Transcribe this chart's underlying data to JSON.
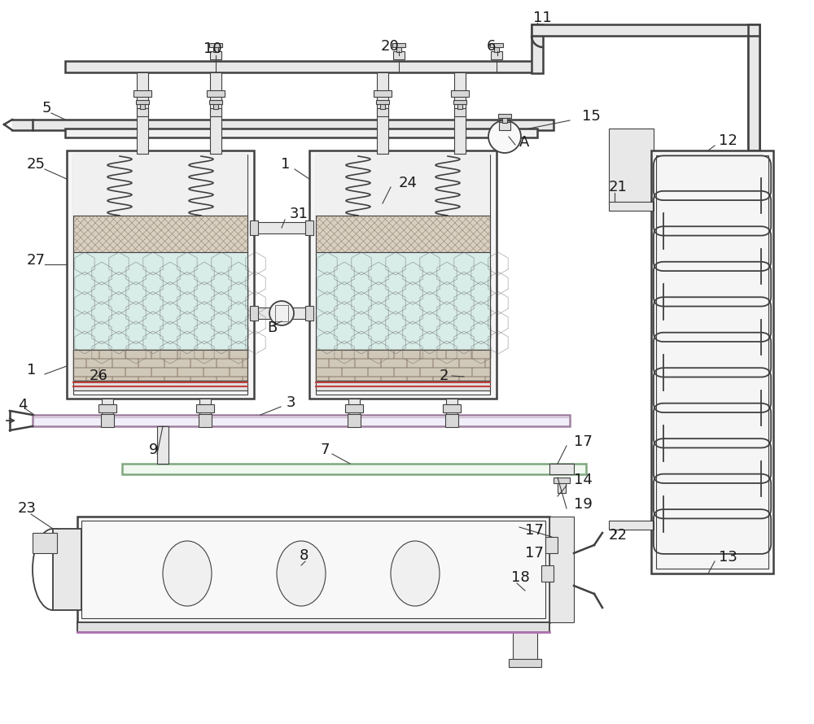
{
  "bg_color": "#ffffff",
  "lc": "#404040",
  "lc2": "#606060",
  "fc_light": "#f0f0f0",
  "fc_pipe": "#e8e8e8",
  "fc_hex": "#d8ece8",
  "fc_hatch": "#d8cfc0",
  "fc_brick": "#d0c8b8",
  "fc_spring_bg": "#f5f5f5",
  "fc_coil": "#e8e8e8",
  "font_size": 13,
  "purple_pipe": "#c890c8",
  "green_pipe": "#90c890",
  "blue_pipe": "#90b0d0"
}
